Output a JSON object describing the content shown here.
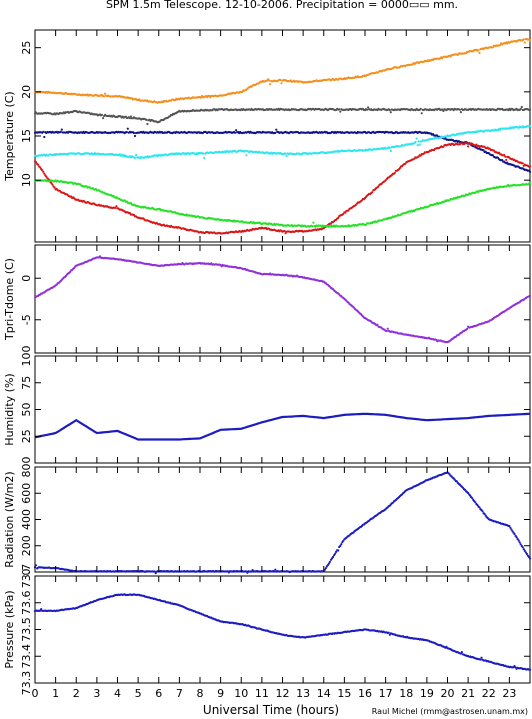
{
  "title": "SPM 1.5m Telescope. 12-10-2006. Precipitation = 0000▭▭ mm.",
  "xlabel": "Universal Time (hours)",
  "credit": "Raul Michel (rmm@astrosen.unam.mx)",
  "x_ticks": [
    "0",
    "1",
    "2",
    "3",
    "4",
    "5",
    "6",
    "7",
    "8",
    "9",
    "10",
    "11",
    "12",
    "13",
    "14",
    "15",
    "16",
    "17",
    "18",
    "19",
    "20",
    "21",
    "22",
    "23"
  ],
  "colors": {
    "orange": "#f39020",
    "gray": "#555555",
    "navy": "#10148a",
    "cyan": "#30e4f0",
    "red": "#d81818",
    "green": "#28e028",
    "purple": "#9030d8",
    "blue": "#1c1cc0"
  },
  "chart_data": [
    {
      "type": "scatter",
      "ylabel": "Temperature (C)",
      "ylim": [
        3,
        27
      ],
      "y_ticks": [
        {
          "v": 10,
          "label": "10"
        },
        {
          "v": 15,
          "label": "15"
        },
        {
          "v": 20,
          "label": "20"
        },
        {
          "v": 25,
          "label": "25"
        }
      ],
      "x": [
        0,
        1,
        2,
        3,
        4,
        5,
        6,
        7,
        8,
        9,
        10,
        11,
        12,
        13,
        14,
        15,
        16,
        17,
        18,
        19,
        20,
        21,
        22,
        23,
        24
      ],
      "series": [
        {
          "color": "orange",
          "values": [
            20.0,
            19.9,
            19.7,
            19.6,
            19.5,
            19.1,
            18.8,
            19.2,
            19.4,
            19.6,
            20.0,
            21.2,
            21.3,
            21.1,
            21.3,
            21.5,
            21.8,
            22.5,
            23.0,
            23.5,
            24.0,
            24.5,
            25.0,
            25.6,
            26.0
          ]
        },
        {
          "color": "gray",
          "values": [
            17.6,
            17.5,
            17.8,
            17.4,
            17.2,
            17.0,
            16.6,
            17.8,
            17.9,
            18.0,
            18.0,
            18.0,
            18.0,
            18.0,
            18.0,
            18.0,
            18.0,
            18.0,
            18.0,
            18.0,
            18.0,
            18.0,
            18.0,
            18.0,
            18.0
          ]
        },
        {
          "color": "navy",
          "values": [
            15.4,
            15.4,
            15.4,
            15.4,
            15.4,
            15.4,
            15.4,
            15.4,
            15.4,
            15.4,
            15.4,
            15.4,
            15.4,
            15.4,
            15.4,
            15.4,
            15.4,
            15.4,
            15.4,
            15.4,
            14.6,
            14.2,
            13.0,
            11.8,
            11.0
          ]
        },
        {
          "color": "cyan",
          "values": [
            12.8,
            12.9,
            13.0,
            13.0,
            12.9,
            12.5,
            12.8,
            13.0,
            13.0,
            13.2,
            13.3,
            13.1,
            13.0,
            13.0,
            13.1,
            13.3,
            13.4,
            13.6,
            14.0,
            14.6,
            15.0,
            15.4,
            15.6,
            15.9,
            16.1
          ]
        },
        {
          "color": "red",
          "values": [
            12.2,
            9.0,
            7.8,
            7.2,
            6.8,
            5.8,
            5.0,
            4.6,
            4.1,
            4.0,
            4.2,
            4.6,
            4.2,
            4.2,
            4.5,
            6.3,
            8.0,
            10.0,
            12.0,
            13.2,
            14.0,
            14.2,
            13.6,
            12.5,
            11.5
          ]
        },
        {
          "color": "green",
          "values": [
            10.0,
            9.9,
            9.6,
            8.9,
            8.0,
            7.0,
            6.7,
            6.2,
            5.8,
            5.5,
            5.3,
            5.1,
            4.9,
            4.8,
            4.8,
            4.8,
            5.0,
            5.6,
            6.3,
            7.0,
            7.7,
            8.4,
            9.0,
            9.4,
            9.6
          ]
        }
      ]
    },
    {
      "type": "scatter",
      "ylabel": "Tpri-Tdome (C)",
      "ylim": [
        -9,
        4
      ],
      "y_ticks": [
        {
          "v": -5,
          "label": "-5"
        },
        {
          "v": 0,
          "label": "0"
        }
      ],
      "x": [
        0,
        1,
        2,
        3,
        4,
        5,
        6,
        7,
        8,
        9,
        10,
        11,
        12,
        13,
        14,
        15,
        16,
        17,
        18,
        19,
        20,
        21,
        22,
        23,
        24
      ],
      "series": [
        {
          "color": "purple",
          "values": [
            -2.3,
            -0.9,
            1.5,
            2.5,
            2.3,
            1.9,
            1.5,
            1.7,
            1.8,
            1.6,
            1.2,
            0.5,
            0.4,
            0.1,
            -0.4,
            -2.5,
            -4.8,
            -6.3,
            -6.8,
            -7.2,
            -7.7,
            -6.0,
            -5.2,
            -3.6,
            -2.1
          ]
        }
      ]
    },
    {
      "type": "line",
      "ylabel": "Humidity (%)",
      "ylim": [
        0,
        100
      ],
      "y_ticks": [
        {
          "v": 25,
          "label": "25"
        },
        {
          "v": 50,
          "label": "50"
        },
        {
          "v": 75,
          "label": "75"
        },
        {
          "v": 100,
          "label": "100"
        }
      ],
      "x": [
        0,
        1,
        2,
        3,
        4,
        5,
        6,
        7,
        8,
        9,
        10,
        11,
        12,
        13,
        14,
        15,
        16,
        17,
        18,
        19,
        20,
        21,
        22,
        23,
        24
      ],
      "series": [
        {
          "color": "blue",
          "values": [
            24,
            28,
            40,
            28,
            30,
            22,
            22,
            22,
            23,
            31,
            32,
            38,
            43,
            44,
            42,
            45,
            46,
            45,
            42,
            40,
            41,
            42,
            44,
            45,
            46
          ]
        }
      ]
    },
    {
      "type": "scatter",
      "ylabel": "Radiation (W/m2)",
      "ylim": [
        0,
        800
      ],
      "y_ticks": [
        {
          "v": 0,
          "label": "0"
        },
        {
          "v": 200,
          "label": "200"
        },
        {
          "v": 400,
          "label": "400"
        },
        {
          "v": 600,
          "label": "600"
        },
        {
          "v": 800,
          "label": "800"
        }
      ],
      "x": [
        0,
        1,
        2,
        3,
        4,
        5,
        6,
        7,
        8,
        9,
        10,
        11,
        12,
        13,
        14,
        15,
        16,
        17,
        18,
        19,
        20,
        21,
        22,
        23,
        24
      ],
      "series": [
        {
          "color": "blue",
          "values": [
            35,
            30,
            5,
            5,
            5,
            5,
            5,
            5,
            5,
            5,
            5,
            5,
            5,
            5,
            5,
            250,
            370,
            480,
            620,
            700,
            760,
            600,
            400,
            350,
            100
          ]
        }
      ]
    },
    {
      "type": "scatter",
      "ylabel": "Pressure (kPa)",
      "ylim": [
        73.3,
        73.7
      ],
      "y_ticks": [
        {
          "v": 73.3,
          "label": "73.3"
        },
        {
          "v": 73.4,
          "label": "73.4"
        },
        {
          "v": 73.5,
          "label": "73.5"
        },
        {
          "v": 73.6,
          "label": "73.6"
        },
        {
          "v": 73.7,
          "label": "73.7"
        }
      ],
      "x": [
        0,
        1,
        2,
        3,
        4,
        5,
        6,
        7,
        8,
        9,
        10,
        11,
        12,
        13,
        14,
        15,
        16,
        17,
        18,
        19,
        20,
        21,
        22,
        23,
        24
      ],
      "series": [
        {
          "color": "blue",
          "values": [
            73.57,
            73.57,
            73.58,
            73.61,
            73.63,
            73.63,
            73.61,
            73.59,
            73.56,
            73.53,
            73.52,
            73.5,
            73.48,
            73.47,
            73.48,
            73.49,
            73.5,
            73.49,
            73.47,
            73.46,
            73.43,
            73.4,
            73.38,
            73.36,
            73.35
          ]
        }
      ]
    }
  ]
}
